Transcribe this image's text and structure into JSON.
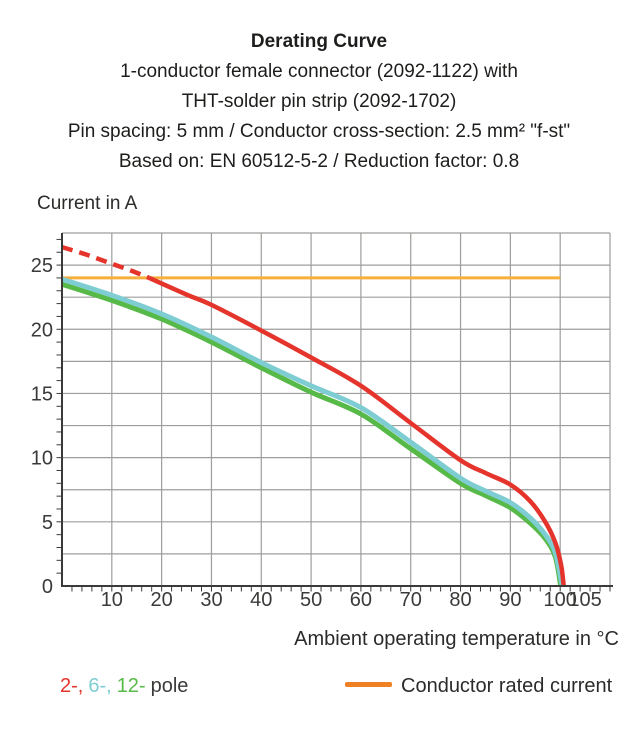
{
  "chart_data": {
    "type": "line",
    "title": "Derating Curve",
    "subtitle_lines": [
      "1-conductor female connector (2092-1122) with",
      "THT-solder pin strip (2092-1702)",
      "Pin spacing: 5 mm / Conductor cross-section: 2.5 mm² \"f-st\"",
      "Based on: EN 60512-5-2 / Reduction factor: 0.8"
    ],
    "ylabel": "Current in A",
    "xlabel": "Ambient operating temperature in °C",
    "xlim": [
      0,
      110
    ],
    "ylim": [
      0,
      27.5
    ],
    "x_gridstep": 10,
    "y_gridstep": 2.5,
    "x_minortick_step": 2,
    "y_minortick_step": 1,
    "x_ticklabels": [
      10,
      20,
      30,
      40,
      50,
      60,
      70,
      80,
      90,
      100,
      105
    ],
    "y_ticklabels": [
      0,
      5,
      10,
      15,
      20,
      25
    ],
    "grid": true,
    "grid_color": "#9d9d9c",
    "axis_color": "#3a3a39",
    "series": [
      {
        "name": "Conductor rated current",
        "color": "#f8ae3c",
        "width": 3,
        "dashed": false,
        "points": [
          [
            0,
            24
          ],
          [
            100,
            24
          ]
        ]
      },
      {
        "name": "12-pole",
        "color": "#57b947",
        "width": 5,
        "dashed": false,
        "points": [
          [
            0,
            23.5
          ],
          [
            10,
            22.25
          ],
          [
            20,
            20.8
          ],
          [
            30,
            19.0
          ],
          [
            40,
            17.0
          ],
          [
            50,
            15.1
          ],
          [
            60,
            13.4
          ],
          [
            70,
            10.7
          ],
          [
            80,
            8.0
          ],
          [
            85,
            7.05
          ],
          [
            90,
            6.1
          ],
          [
            94,
            4.9
          ],
          [
            97,
            3.7
          ],
          [
            99,
            2.3
          ],
          [
            100.1,
            0
          ]
        ]
      },
      {
        "name": "6-pole",
        "color": "#7ecdd3",
        "width": 5,
        "dashed": false,
        "points": [
          [
            0,
            23.9
          ],
          [
            10,
            22.65
          ],
          [
            20,
            21.2
          ],
          [
            30,
            19.4
          ],
          [
            40,
            17.4
          ],
          [
            50,
            15.6
          ],
          [
            60,
            13.9
          ],
          [
            70,
            11.2
          ],
          [
            80,
            8.4
          ],
          [
            85,
            7.4
          ],
          [
            90,
            6.5
          ],
          [
            94,
            5.3
          ],
          [
            97,
            4.0
          ],
          [
            99,
            2.6
          ],
          [
            100.4,
            0
          ]
        ]
      },
      {
        "name": "2-pole (above rated current, dashed)",
        "color": "#e5342b",
        "width": 4.5,
        "dashed": true,
        "points": [
          [
            0,
            26.4
          ],
          [
            5,
            25.8
          ],
          [
            10,
            25.1
          ],
          [
            14,
            24.55
          ],
          [
            17.5,
            24.0
          ]
        ]
      },
      {
        "name": "2-pole",
        "color": "#e5342b",
        "width": 4.5,
        "dashed": false,
        "points": [
          [
            17.5,
            24.0
          ],
          [
            25,
            22.7
          ],
          [
            30,
            21.9
          ],
          [
            40,
            19.9
          ],
          [
            50,
            17.8
          ],
          [
            60,
            15.6
          ],
          [
            70,
            12.7
          ],
          [
            80,
            9.8
          ],
          [
            85,
            8.8
          ],
          [
            90,
            7.9
          ],
          [
            94,
            6.6
          ],
          [
            97,
            5.0
          ],
          [
            99,
            3.4
          ],
          [
            100.2,
            1.6
          ],
          [
            100.7,
            0
          ]
        ]
      }
    ]
  },
  "legend": {
    "poles": [
      {
        "text": "2-,",
        "color": "#e5342b"
      },
      {
        "text": "6-,",
        "color": "#7ecdd3"
      },
      {
        "text": "12-",
        "color": "#57b947"
      },
      {
        "text": "pole",
        "color": "#3a3a39"
      }
    ],
    "rated": {
      "label": "Conductor rated current",
      "swatch_color": "#ef8023"
    }
  }
}
